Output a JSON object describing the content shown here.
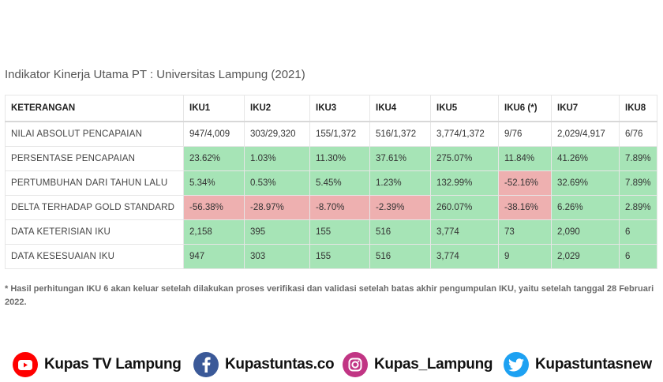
{
  "title": "Indikator Kinerja Utama PT : Universitas Lampung (2021)",
  "table": {
    "headers": [
      "KETERANGAN",
      "IKU1",
      "IKU2",
      "IKU3",
      "IKU4",
      "IKU5",
      "IKU6 (*)",
      "IKU7",
      "IKU8"
    ],
    "rows": [
      {
        "label": "NILAI ABSOLUT PENCAPAIAN",
        "cells": [
          "947/4,009",
          "303/29,320",
          "155/1,372",
          "516/1,372",
          "3,774/1,372",
          "9/76",
          "2,029/4,917",
          "6/76"
        ],
        "status": [
          "none",
          "none",
          "none",
          "none",
          "none",
          "none",
          "none",
          "none"
        ]
      },
      {
        "label": "PERSENTASE PENCAPAIAN",
        "cells": [
          "23.62%",
          "1.03%",
          "11.30%",
          "37.61%",
          "275.07%",
          "11.84%",
          "41.26%",
          "7.89%"
        ],
        "status": [
          "good",
          "good",
          "good",
          "good",
          "good",
          "good",
          "good",
          "good"
        ]
      },
      {
        "label": "PERTUMBUHAN DARI TAHUN LALU",
        "cells": [
          "5.34%",
          "0.53%",
          "5.45%",
          "1.23%",
          "132.99%",
          "-52.16%",
          "32.69%",
          "7.89%"
        ],
        "status": [
          "good",
          "good",
          "good",
          "good",
          "good",
          "bad",
          "good",
          "good"
        ]
      },
      {
        "label": "DELTA TERHADAP GOLD STANDARD",
        "cells": [
          "-56.38%",
          "-28.97%",
          "-8.70%",
          "-2.39%",
          "260.07%",
          "-38.16%",
          "6.26%",
          "2.89%"
        ],
        "status": [
          "bad",
          "bad",
          "bad",
          "bad",
          "good",
          "bad",
          "good",
          "good"
        ]
      },
      {
        "label": "DATA KETERISIAN IKU",
        "cells": [
          "2,158",
          "395",
          "155",
          "516",
          "3,774",
          "73",
          "2,090",
          "6"
        ],
        "status": [
          "good",
          "good",
          "good",
          "good",
          "good",
          "good",
          "good",
          "good"
        ]
      },
      {
        "label": "DATA KESESUAIAN IKU",
        "cells": [
          "947",
          "303",
          "155",
          "516",
          "3,774",
          "9",
          "2,029",
          "6"
        ],
        "status": [
          "good",
          "good",
          "good",
          "good",
          "good",
          "good",
          "good",
          "good"
        ]
      }
    ],
    "colors": {
      "good": "#a6e4b6",
      "bad": "#eeb0b0"
    }
  },
  "note": "* Hasil perhitungan IKU 6 akan keluar setelah dilakukan proses verifikasi dan validasi setelah batas akhir pengumpulan IKU, yaitu setelah tanggal 28 Februari 2022.",
  "footer": {
    "youtube": {
      "label": "Kupas TV Lampung",
      "icon": "youtube-icon",
      "color": "#ff0000"
    },
    "facebook": {
      "label": "Kupastuntas.co",
      "icon": "facebook-icon",
      "color": "#3b5998"
    },
    "instagram": {
      "label": "Kupas_Lampung",
      "icon": "instagram-icon",
      "color": "#c13584"
    },
    "twitter": {
      "label": "Kupastuntasnew",
      "icon": "twitter-icon",
      "color": "#1da1f2"
    }
  }
}
